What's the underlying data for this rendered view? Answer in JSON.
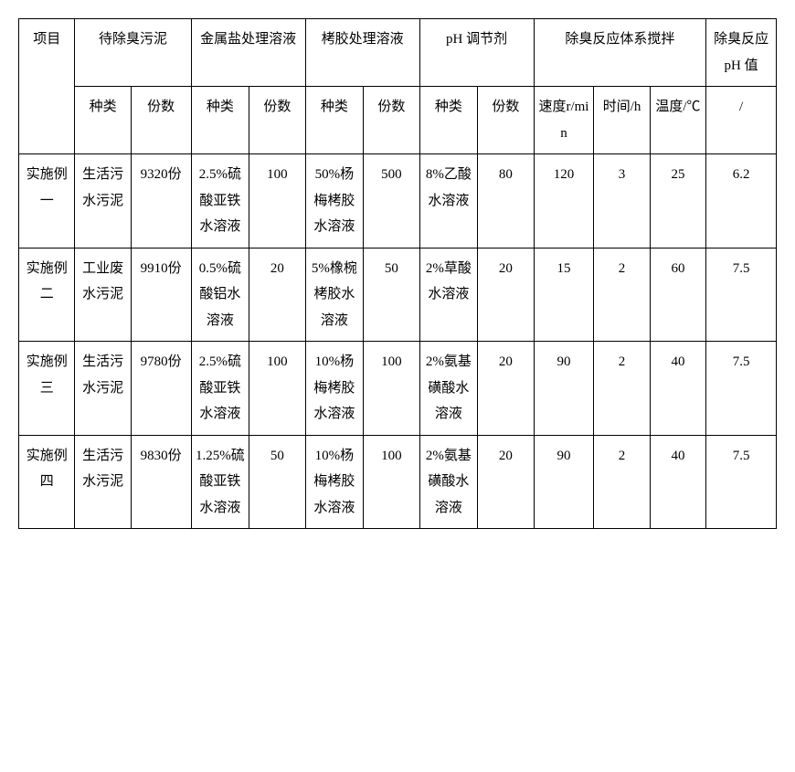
{
  "table": {
    "header": {
      "project": "项目",
      "sludge": "待除臭污泥",
      "metal": "金属盐处理溶液",
      "tannin": "栲胶处理溶液",
      "phreg": "pH 调节剂",
      "stir": "除臭反应体系搅拌",
      "phval": "除臭反应 pH 值",
      "sub_type": "种类",
      "sub_parts": "份数",
      "sub_speed": "速度r/min",
      "sub_time": "时间/h",
      "sub_temp": "温度/℃",
      "sub_slash": "/"
    },
    "rows": [
      {
        "name": "实施例一",
        "sludge_type": "生活污水污泥",
        "sludge_parts": "9320份",
        "metal_type": "2.5%硫酸亚铁水溶液",
        "metal_parts": "100",
        "tannin_type": "50%杨梅栲胶水溶液",
        "tannin_parts": "500",
        "ph_type": "8%乙酸水溶液",
        "ph_parts": "80",
        "speed": "120",
        "time": "3",
        "temp": "25",
        "phval": "6.2"
      },
      {
        "name": "实施例二",
        "sludge_type": "工业废水污泥",
        "sludge_parts": "9910份",
        "metal_type": "0.5%硫酸铝水溶液",
        "metal_parts": "20",
        "tannin_type": "5%橡椀栲胶水溶液",
        "tannin_parts": "50",
        "ph_type": "2%草酸水溶液",
        "ph_parts": "20",
        "speed": "15",
        "time": "2",
        "temp": "60",
        "phval": "7.5"
      },
      {
        "name": "实施例三",
        "sludge_type": "生活污水污泥",
        "sludge_parts": "9780份",
        "metal_type": "2.5%硫酸亚铁水溶液",
        "metal_parts": "100",
        "tannin_type": "10%杨梅栲胶水溶液",
        "tannin_parts": "100",
        "ph_type": "2%氨基磺酸水溶液",
        "ph_parts": "20",
        "speed": "90",
        "time": "2",
        "temp": "40",
        "phval": "7.5"
      },
      {
        "name": "实施例四",
        "sludge_type": "生活污水污泥",
        "sludge_parts": "9830份",
        "metal_type": "1.25%硫酸亚铁水溶液",
        "metal_parts": "50",
        "tannin_type": "10%杨梅栲胶水溶液",
        "tannin_parts": "100",
        "ph_type": "2%氨基磺酸水溶液",
        "ph_parts": "20",
        "speed": "90",
        "time": "2",
        "temp": "40",
        "phval": "7.5"
      }
    ]
  }
}
